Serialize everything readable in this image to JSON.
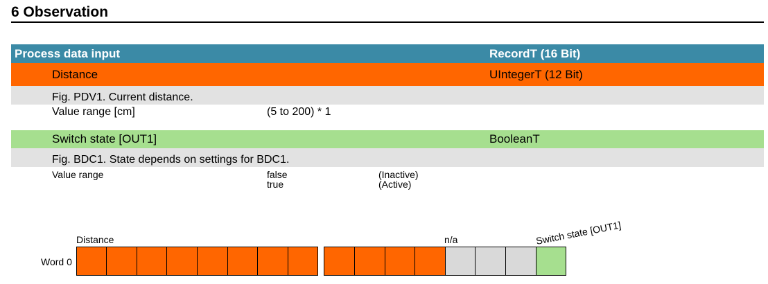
{
  "heading": "6 Observation",
  "process_data": {
    "label": "Process data input",
    "type": "RecordT (16 Bit)"
  },
  "distance": {
    "label": "Distance",
    "type": "UIntegerT (12 Bit)",
    "description": "Fig. PDV1. Current distance.",
    "range_label": "Value range [cm]",
    "range_value": "(5 to 200) * 1"
  },
  "switch_state": {
    "label": "Switch state [OUT1]",
    "type": "BooleanT",
    "description": "Fig. BDC1. State depends on settings for BDC1.",
    "range_label": "Value range",
    "values": [
      {
        "value": "false",
        "meaning": "(Inactive)"
      },
      {
        "value": "true",
        "meaning": "(Active)"
      }
    ]
  },
  "bit_diagram": {
    "word_label": "Word 0",
    "distance_label": "Distance",
    "na_label": "n/a",
    "switch_label": "Switch state [OUT1]",
    "colors": {
      "distance": "#ff6600",
      "na": "#d9d9d9",
      "switch": "#a6df8f"
    }
  }
}
